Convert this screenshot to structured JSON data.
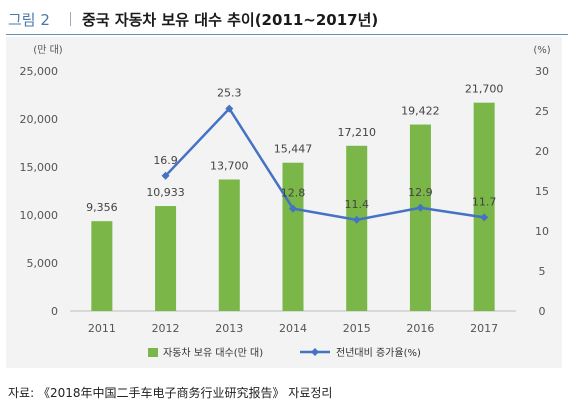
{
  "header": {
    "figure_label": "그림 2",
    "title": "중국 자동차 보유 대수 추이(2011~2017년)"
  },
  "source_note": "자료: 《2018年中国二手车电子商务行业研究报告》 자료정리",
  "chart_data": {
    "type": "bar",
    "categories": [
      "2011",
      "2012",
      "2013",
      "2014",
      "2015",
      "2016",
      "2017"
    ],
    "y_left_unit": "(만 대)",
    "y_right_unit": "(%)",
    "y_left_ticks": [
      "0",
      "5,000",
      "10,000",
      "15,000",
      "20,000",
      "25,000"
    ],
    "y_right_ticks": [
      "0",
      "5",
      "10",
      "15",
      "20",
      "25",
      "30"
    ],
    "ylim_left": [
      0,
      25000
    ],
    "ylim_right": [
      0,
      30
    ],
    "series": [
      {
        "name": "자동차 보유 대수(만 대)",
        "kind": "bar",
        "axis": "left",
        "color": "#7ab648",
        "values": [
          9356,
          10933,
          13700,
          15447,
          17210,
          19422,
          21700
        ],
        "labels": [
          "9,356",
          "10,933",
          "13,700",
          "15,447",
          "17,210",
          "19,422",
          "21,700"
        ]
      },
      {
        "name": "전년대비 증가율(%)",
        "kind": "line",
        "axis": "right",
        "color": "#4472c4",
        "values": [
          null,
          16.9,
          25.3,
          12.8,
          11.4,
          12.9,
          11.7
        ],
        "labels": [
          "",
          "16.9",
          "25.3",
          "12.8",
          "11.4",
          "12.9",
          "11.7"
        ]
      }
    ],
    "legend_position": "bottom",
    "grid": false
  }
}
